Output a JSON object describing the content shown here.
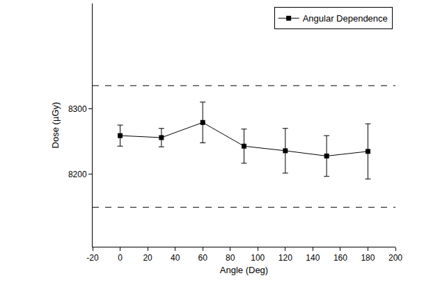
{
  "chart_data": {
    "type": "line",
    "x_label": "Angle (Deg)",
    "y_label": "Dose (µGy)",
    "series": [
      {
        "name": "Angular Dependence",
        "color": "#000000",
        "marker": "square",
        "line_style": "solid",
        "x": [
          0,
          30,
          60,
          90,
          120,
          150,
          180
        ],
        "values": [
          8259,
          8256,
          8279,
          8243,
          8236,
          8228,
          8235
        ],
        "error": [
          16,
          14,
          31,
          26,
          34,
          31,
          42
        ]
      }
    ],
    "reference_lines": {
      "values": [
        8335,
        8150
      ],
      "color": "#000000",
      "line_style": "dashed"
    },
    "xlim": [
      -20,
      200
    ],
    "xticks": [
      -20,
      0,
      20,
      40,
      60,
      80,
      100,
      120,
      140,
      160,
      180,
      200
    ],
    "ylim": [
      8090,
      8460
    ],
    "yticks": [
      8200,
      8300
    ],
    "grid": false,
    "legend": "top right"
  }
}
